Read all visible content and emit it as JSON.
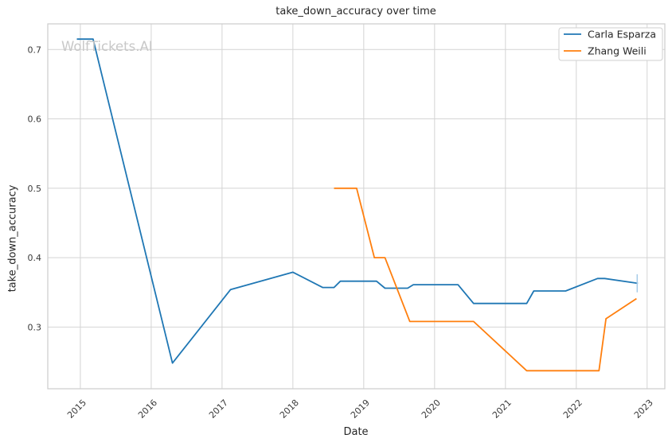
{
  "watermark": {
    "text": "WolfTickets.AI"
  },
  "colors": {
    "background": "#ffffff",
    "grid": "#d4d4d4",
    "spine": "#cccccc",
    "text": "#262626",
    "tick_text": "#3a3a3a",
    "watermark": "#c8c8c8",
    "legend_border": "#cfcfcf",
    "legend_bg": "#ffffff",
    "blue": "#1f77b4",
    "orange": "#ff7f0e",
    "end_tick_blue": "#a6cbe8"
  },
  "chart_data": {
    "type": "line",
    "title": "take_down_accuracy over time",
    "xlabel": "Date",
    "ylabel": "take_down_accuracy",
    "grid": true,
    "xlim": [
      2014.54,
      2023.25
    ],
    "ylim": [
      0.211,
      0.737
    ],
    "x_tick_values": [
      2015,
      2016,
      2017,
      2018,
      2019,
      2020,
      2021,
      2022,
      2023
    ],
    "x_tick_labels": [
      "2015",
      "2016",
      "2017",
      "2018",
      "2019",
      "2020",
      "2021",
      "2022",
      "2023"
    ],
    "y_tick_values": [
      0.3,
      0.4,
      0.5,
      0.6,
      0.7
    ],
    "y_tick_labels": [
      "0.3",
      "0.4",
      "0.5",
      "0.6",
      "0.7"
    ],
    "x_tick_rotation_deg": -45,
    "legend": {
      "position": "upper right"
    },
    "series": [
      {
        "name": "Carla Esparza",
        "color": "#1f77b4",
        "x": [
          2014.95,
          2015.18,
          2016.3,
          2017.12,
          2018.0,
          2018.42,
          2018.58,
          2018.67,
          2019.18,
          2019.3,
          2019.62,
          2019.7,
          2020.33,
          2020.55,
          2021.3,
          2021.4,
          2021.85,
          2022.3,
          2022.4,
          2022.87
        ],
        "y": [
          0.715,
          0.715,
          0.248,
          0.354,
          0.379,
          0.357,
          0.357,
          0.366,
          0.366,
          0.356,
          0.356,
          0.361,
          0.361,
          0.334,
          0.334,
          0.352,
          0.352,
          0.37,
          0.37,
          0.363
        ]
      },
      {
        "name": "Zhang Weili",
        "color": "#ff7f0e",
        "x": [
          2018.58,
          2018.9,
          2019.15,
          2019.3,
          2019.65,
          2020.55,
          2021.3,
          2022.32,
          2022.42,
          2022.85
        ],
        "y": [
          0.5,
          0.5,
          0.4,
          0.4,
          0.308,
          0.308,
          0.237,
          0.237,
          0.312,
          0.341
        ]
      }
    ],
    "end_tick": {
      "series": "Carla Esparza",
      "x": 2022.86,
      "y_from": 0.35,
      "y_to": 0.376,
      "color": "#a6cbe8"
    }
  }
}
